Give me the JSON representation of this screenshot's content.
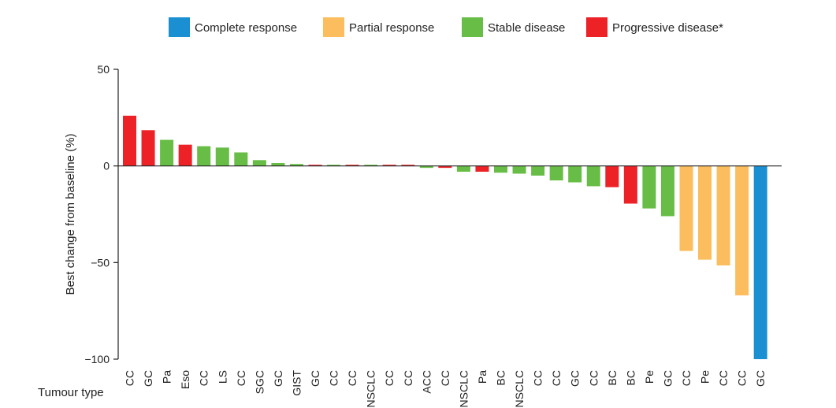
{
  "chart_data": {
    "type": "bar",
    "title": "",
    "xlabel": "Tumour type",
    "ylabel": "Best change from baseline (%)",
    "ylim": [
      -100,
      50
    ],
    "yticks": [
      50,
      0,
      -50,
      -100
    ],
    "ytick_labels": [
      "50",
      "0",
      "−50",
      "−100"
    ],
    "grid": false,
    "legend_position": "top",
    "legend": [
      {
        "key": "cr",
        "label": "Complete response",
        "color": "#1a8fd1"
      },
      {
        "key": "pr",
        "label": "Partial response",
        "color": "#fbbd5d"
      },
      {
        "key": "sd",
        "label": "Stable disease",
        "color": "#67bd45"
      },
      {
        "key": "pd",
        "label": "Progressive disease*",
        "color": "#ec2227"
      }
    ],
    "categories": [
      "CC",
      "GC",
      "Pa",
      "Eso",
      "CC",
      "LS",
      "CC",
      "SGC",
      "GC",
      "GIST",
      "GC",
      "CC",
      "CC",
      "NSCLC",
      "CC",
      "CC",
      "ACC",
      "CC",
      "NSCLC",
      "Pa",
      "BC",
      "NSCLC",
      "CC",
      "CC",
      "GC",
      "CC",
      "BC",
      "BC",
      "Pe",
      "GC",
      "CC",
      "Pe",
      "CC",
      "CC",
      "GC"
    ],
    "values": [
      26,
      18.5,
      13.5,
      11,
      10.2,
      9.5,
      7,
      3,
      1.5,
      1,
      0.5,
      0.5,
      0.5,
      0.5,
      0.5,
      0.5,
      -1,
      -1,
      -3,
      -3,
      -3.5,
      -4,
      -5,
      -7.5,
      -8.5,
      -10.5,
      -11,
      -19.5,
      -22,
      -26,
      -44,
      -48.5,
      -51.5,
      -67,
      -100
    ],
    "response": [
      "pd",
      "pd",
      "sd",
      "pd",
      "sd",
      "sd",
      "sd",
      "sd",
      "sd",
      "sd",
      "pd",
      "sd",
      "pd",
      "sd",
      "pd",
      "pd",
      "sd",
      "pd",
      "sd",
      "pd",
      "sd",
      "sd",
      "sd",
      "sd",
      "sd",
      "sd",
      "pd",
      "pd",
      "sd",
      "sd",
      "pr",
      "pr",
      "pr",
      "pr",
      "cr"
    ]
  }
}
